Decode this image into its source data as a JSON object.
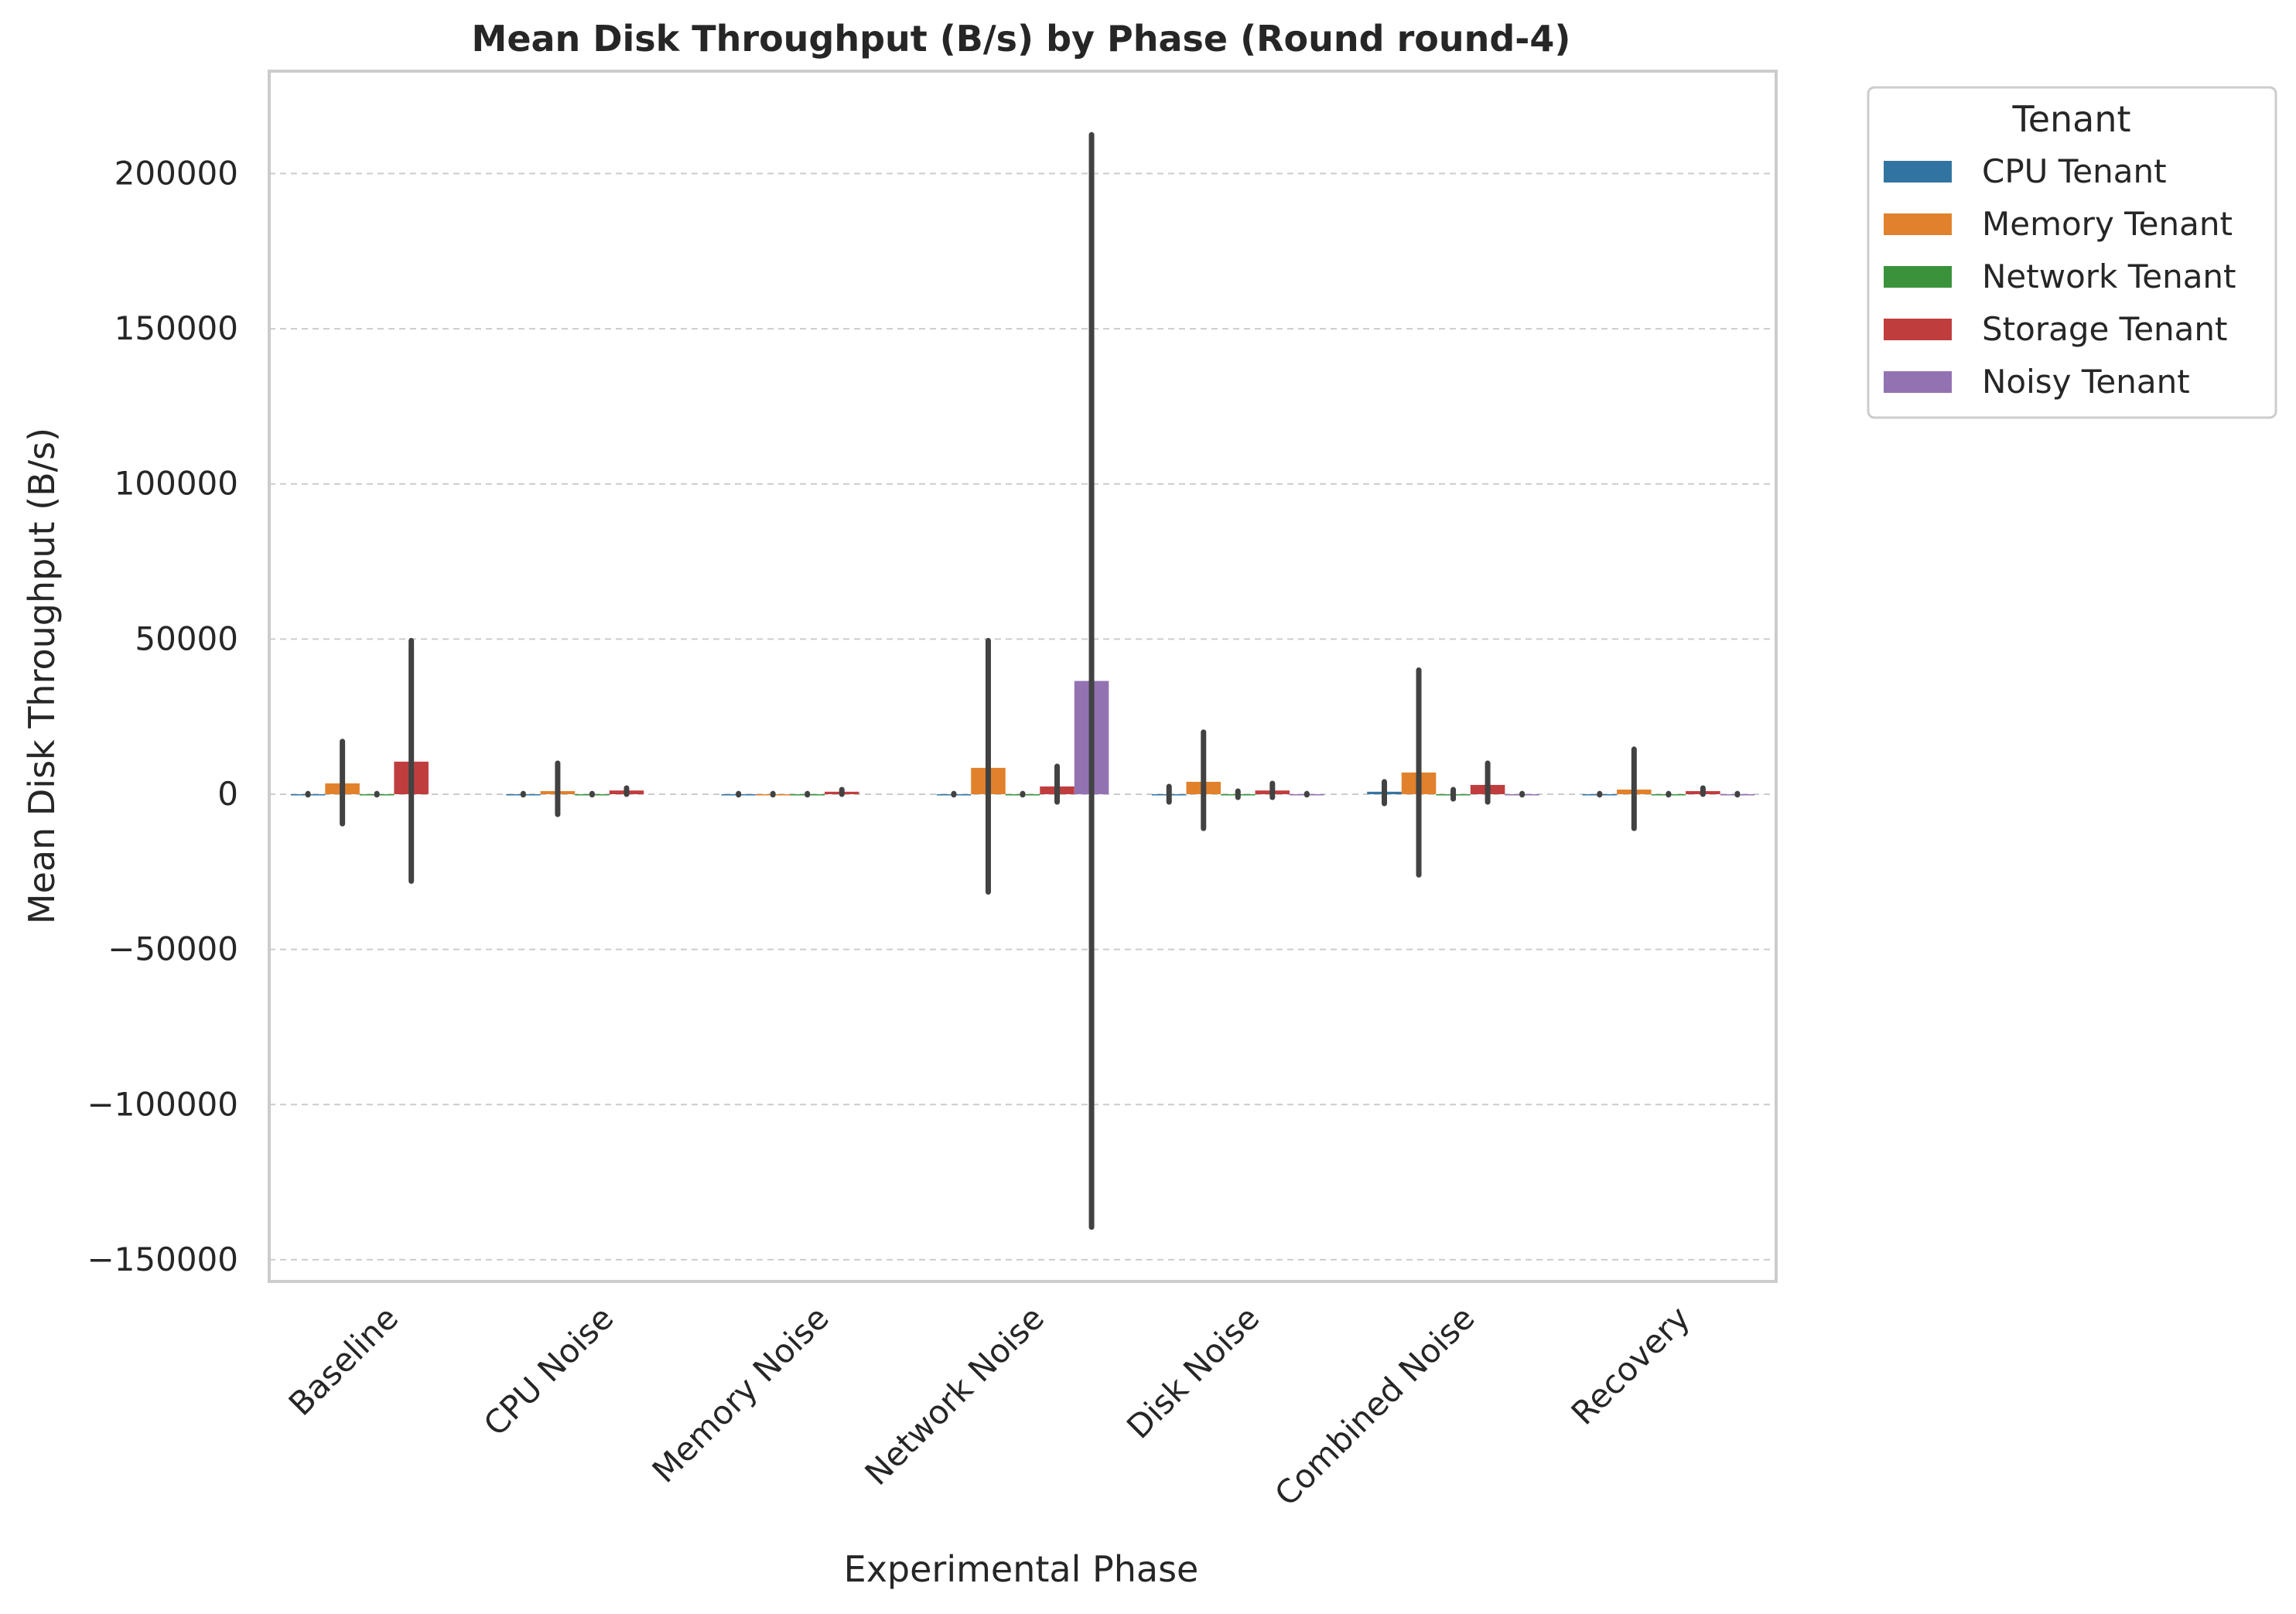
{
  "chart_data": {
    "type": "bar",
    "title": "Mean Disk Throughput (B/s) by Phase (Round round-4)",
    "xlabel": "Experimental Phase",
    "ylabel": "Mean Disk Throughput (B/s)",
    "ylim": [
      -157000,
      233000
    ],
    "yticks": [
      -150000,
      -100000,
      -50000,
      0,
      50000,
      100000,
      150000,
      200000
    ],
    "ytick_labels": [
      "−150000",
      "−100000",
      "−50000",
      "0",
      "50000",
      "100000",
      "150000",
      "200000"
    ],
    "grid": "horizontal-dashed",
    "legend_title": "Tenant",
    "legend_position": "outside-top-right",
    "categories": [
      "Baseline",
      "CPU Noise",
      "Memory Noise",
      "Network Noise",
      "Disk Noise",
      "Combined Noise",
      "Recovery"
    ],
    "series": [
      {
        "name": "CPU Tenant",
        "color": "#3274a1",
        "values": [
          0,
          0,
          0,
          0,
          0,
          800,
          0
        ],
        "err_low": [
          -200,
          -200,
          -200,
          -200,
          -2500,
          -3000,
          -200
        ],
        "err_high": [
          200,
          200,
          200,
          200,
          2500,
          4000,
          200
        ]
      },
      {
        "name": "Memory Tenant",
        "color": "#e1812c",
        "values": [
          3500,
          1000,
          0,
          8500,
          4000,
          7000,
          1500
        ],
        "err_low": [
          -9500,
          -6500,
          -200,
          -31500,
          -11000,
          -26000,
          -11000
        ],
        "err_high": [
          17000,
          10000,
          200,
          49500,
          20000,
          40000,
          14500
        ]
      },
      {
        "name": "Network Tenant",
        "color": "#3a923a",
        "values": [
          0,
          0,
          0,
          0,
          0,
          0,
          0
        ],
        "err_low": [
          -200,
          -200,
          -200,
          -200,
          -1000,
          -1500,
          -200
        ],
        "err_high": [
          200,
          200,
          200,
          200,
          1000,
          1500,
          200
        ]
      },
      {
        "name": "Storage Tenant",
        "color": "#c03d3e",
        "values": [
          10500,
          1200,
          800,
          2500,
          1200,
          3000,
          1000
        ],
        "err_low": [
          -28000,
          0,
          0,
          -2500,
          -1000,
          -2500,
          0
        ],
        "err_high": [
          49500,
          2000,
          1500,
          9000,
          3500,
          10000,
          2000
        ]
      },
      {
        "name": "Noisy Tenant",
        "color": "#9372b2",
        "values": [
          null,
          null,
          null,
          36500,
          0,
          0,
          0
        ],
        "err_low": [
          null,
          null,
          null,
          -139500,
          -200,
          -200,
          -200
        ],
        "err_high": [
          null,
          null,
          null,
          212500,
          200,
          200,
          200
        ]
      }
    ]
  }
}
